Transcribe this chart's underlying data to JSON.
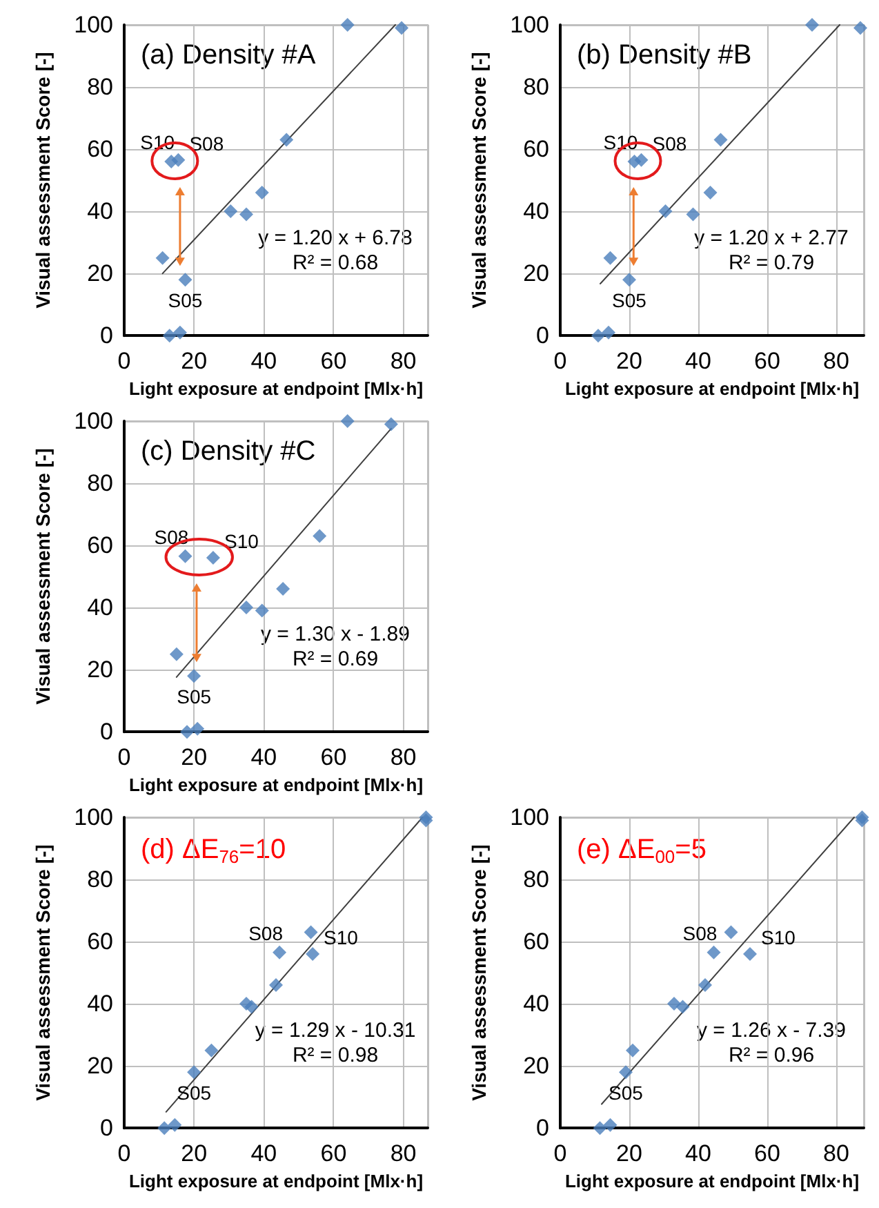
{
  "chart_data": [
    {
      "type": "scatter",
      "title": "(a) Density #A",
      "xlabel": "Light exposure at endpoint [Mlx·h]",
      "ylabel": "Visual assessment Score [-]",
      "xlim": [
        0,
        87
      ],
      "xticks": [
        0,
        20,
        40,
        60,
        80
      ],
      "ylim": [
        0,
        100
      ],
      "yticks": [
        0,
        20,
        40,
        60,
        80,
        100
      ],
      "grid": true,
      "line_style": "solid",
      "series": [
        {
          "color": "#4a7ebb",
          "marker": "diamond",
          "x": [
            13,
            16,
            11,
            17.5,
            13.5,
            15.5,
            30.5,
            35,
            39.5,
            46.5,
            64,
            79.5
          ],
          "values": [
            0,
            1,
            25,
            18,
            56,
            56.5,
            40,
            39,
            46,
            63,
            100,
            99
          ]
        },
        {
          "type": "line",
          "color": "#404040",
          "x": [
            11,
            77.7
          ],
          "values": [
            20,
            100
          ]
        }
      ],
      "annotations": [
        {
          "text": "S05",
          "x": 17.5,
          "y": 18
        },
        {
          "text": "S10",
          "x": 13.5,
          "y": 56
        },
        {
          "text": "S08",
          "x": 15.5,
          "y": 56.5
        },
        "y = 1.20 x + 6.78",
        "R² = 0.68"
      ]
    },
    {
      "type": "scatter",
      "title": "(b) Density #B",
      "xlabel": "Light exposure at endpoint [Mlx·h]",
      "ylabel": "Visual assessment Score [-]",
      "xlim": [
        0,
        88
      ],
      "xticks": [
        0,
        20,
        40,
        60,
        80
      ],
      "ylim": [
        0,
        100
      ],
      "yticks": [
        0,
        20,
        40,
        60,
        80,
        100
      ],
      "grid": true,
      "line_style": "solid",
      "series": [
        {
          "color": "#4a7ebb",
          "marker": "diamond",
          "x": [
            11,
            14,
            14.5,
            20,
            21.5,
            23.5,
            30.5,
            38.5,
            43.5,
            46.5,
            73,
            87
          ],
          "values": [
            0,
            1,
            25,
            18,
            56,
            56.5,
            40,
            39,
            46,
            63,
            100,
            99
          ]
        },
        {
          "type": "line",
          "color": "#404040",
          "x": [
            11.6,
            81
          ],
          "values": [
            16.7,
            100
          ]
        }
      ],
      "annotations": [
        {
          "text": "S05",
          "x": 20,
          "y": 18
        },
        {
          "text": "S10",
          "x": 21.5,
          "y": 56
        },
        {
          "text": "S08",
          "x": 23.5,
          "y": 56.5
        },
        "y = 1.20 x + 2.77",
        "R² = 0.79"
      ]
    },
    {
      "type": "scatter",
      "title": "(c) Density #C",
      "xlabel": "Light exposure at endpoint [Mlx·h]",
      "ylabel": "Visual assessment Score [-]",
      "xlim": [
        0,
        87
      ],
      "xticks": [
        0,
        20,
        40,
        60,
        80
      ],
      "ylim": [
        0,
        100
      ],
      "yticks": [
        0,
        20,
        40,
        60,
        80,
        100
      ],
      "grid": true,
      "line_style": "solid",
      "series": [
        {
          "color": "#4a7ebb",
          "marker": "diamond",
          "x": [
            18,
            21,
            15,
            20,
            25.5,
            17.5,
            35,
            39.5,
            45.5,
            56,
            64,
            76.5
          ],
          "values": [
            0,
            1,
            25,
            18,
            56,
            56.5,
            40,
            39,
            46,
            63,
            100,
            99
          ]
        },
        {
          "type": "line",
          "color": "#404040",
          "x": [
            15,
            76.5
          ],
          "values": [
            17.6,
            97.6
          ]
        }
      ],
      "annotations": [
        {
          "text": "S05",
          "x": 20,
          "y": 18
        },
        {
          "text": "S08",
          "x": 17.5,
          "y": 56.5
        },
        {
          "text": "S10",
          "x": 25.5,
          "y": 56
        },
        "y = 1.30 x - 1.89",
        "R² = 0.69"
      ]
    },
    {
      "type": "scatter",
      "title": "(d) ΔE$_{76}$=10",
      "xlabel": "Light exposure at endpoint [Mlx·h]",
      "ylabel": "Visual assessment Score [-]",
      "xlim": [
        0,
        87
      ],
      "xticks": [
        0,
        20,
        40,
        60,
        80
      ],
      "ylim": [
        0,
        100
      ],
      "yticks": [
        0,
        20,
        40,
        60,
        80,
        100
      ],
      "grid": true,
      "line_style": "solid",
      "series": [
        {
          "color": "#4a7ebb",
          "marker": "diamond",
          "x": [
            11.5,
            14.5,
            20,
            25,
            35,
            36.5,
            43.5,
            44.5,
            53.5,
            54,
            86.5,
            86.5
          ],
          "values": [
            0,
            1,
            18,
            25,
            40,
            39,
            46,
            56.5,
            63,
            56,
            100,
            99
          ]
        },
        {
          "type": "line",
          "color": "#404040",
          "x": [
            12,
            85.5
          ],
          "values": [
            5.2,
            100
          ]
        }
      ],
      "annotations": [
        {
          "text": "S05",
          "x": 20,
          "y": 18
        },
        {
          "text": "S08",
          "x": 44.5,
          "y": 56.5
        },
        {
          "text": "S10",
          "x": 54,
          "y": 56
        },
        "y = 1.29 x - 10.31",
        "R² = 0.98"
      ]
    },
    {
      "type": "scatter",
      "title": "(e) ΔE$_{00}$=5",
      "xlabel": "Light exposure at endpoint [Mlx·h]",
      "ylabel": "Visual assessment Score [-]",
      "xlim": [
        0,
        88
      ],
      "xticks": [
        0,
        20,
        40,
        60,
        80
      ],
      "ylim": [
        0,
        100
      ],
      "yticks": [
        0,
        20,
        40,
        60,
        80,
        100
      ],
      "grid": true,
      "line_style": "solid",
      "series": [
        {
          "color": "#4a7ebb",
          "marker": "diamond",
          "x": [
            11.5,
            14.5,
            19,
            21,
            33,
            35.5,
            42,
            44.5,
            49.5,
            55,
            87.5,
            87.5
          ],
          "values": [
            0,
            1,
            18,
            25,
            40,
            39,
            46,
            56.5,
            63,
            56,
            100,
            99
          ]
        },
        {
          "type": "line",
          "color": "#404040",
          "x": [
            12,
            85.2
          ],
          "values": [
            7.7,
            100
          ]
        }
      ],
      "annotations": [
        {
          "text": "S05",
          "x": 19,
          "y": 18
        },
        {
          "text": "S08",
          "x": 44.5,
          "y": 56.5
        },
        {
          "text": "S10",
          "x": 55,
          "y": 56
        },
        "y = 1.26 x - 7.39",
        "R² = 0.96"
      ]
    }
  ]
}
